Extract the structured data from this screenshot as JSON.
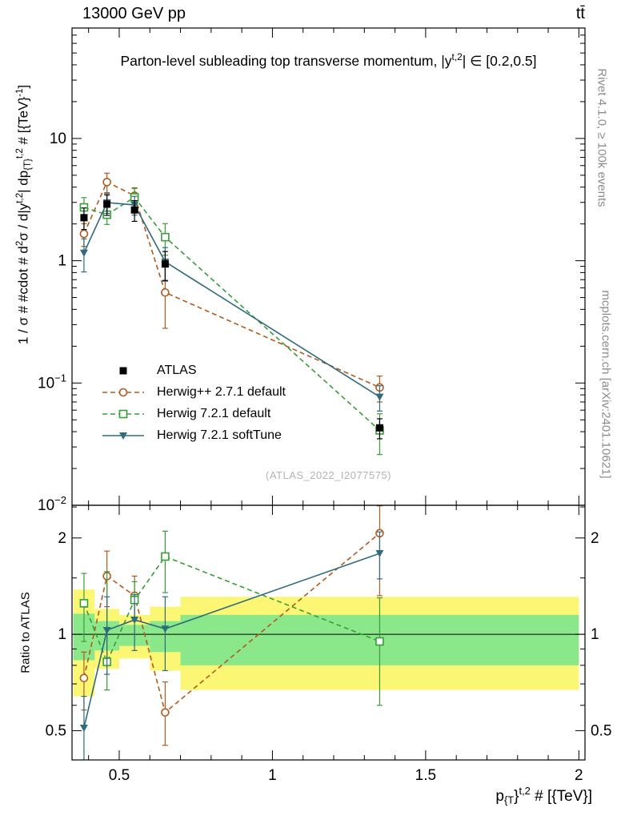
{
  "header": {
    "left": "13000 GeV pp",
    "right": "tt̄"
  },
  "side": {
    "rivet": "Rivet 4.1.0, ≥ 100k events",
    "mcplots": "mcplots.cern.ch [arXiv:2401.10621]"
  },
  "chart_data": {
    "type": "line",
    "title": "Parton-level subleading top transverse momentum, |y^{t,2}| ∈ [0.2,0.5]",
    "title_segments": [
      {
        "t": "Parton-level subleading top transverse momentum, |y"
      },
      {
        "t": "t,2",
        "s": "sup"
      },
      {
        "t": "| ∈ [0.2,0.5]"
      }
    ],
    "xlabel": "p_{T}^{t,2} # [{TeV}]",
    "xlabel_segments": [
      {
        "t": "p"
      },
      {
        "t": "{T",
        "s": "sub"
      },
      {
        "t": "}"
      },
      {
        "t": "t,2",
        "s": "sup"
      },
      {
        "t": " # [{TeV}]"
      }
    ],
    "x_range": [
      0.346,
      2.02
    ],
    "x_scale": "linear",
    "bin_edges": [
      0.35,
      0.42,
      0.5,
      0.6,
      0.7,
      2.0
    ],
    "x": [
      0.385,
      0.46,
      0.55,
      0.65,
      1.35
    ],
    "x_ticks": [
      {
        "v": 0.5,
        "label": "0.5"
      },
      {
        "v": 1,
        "label": "1"
      },
      {
        "v": 1.5,
        "label": "1.5"
      },
      {
        "v": 2,
        "label": "2"
      }
    ],
    "main": {
      "scale": "log",
      "y_range": [
        0.01,
        80
      ],
      "ylabel": "1 / σ # #cdot # d^2σ / d|y^{t,2}| dp_{T}^{t,2} # [{TeV}^-1]",
      "ylabel_segments": [
        {
          "t": "1 / σ # #cdot # d"
        },
        {
          "t": "2",
          "s": "sup"
        },
        {
          "t": "σ / d|y"
        },
        {
          "t": "t,2",
          "s": "sup"
        },
        {
          "t": "| dp"
        },
        {
          "t": "{T}",
          "s": "sub"
        },
        {
          "t": "t,2",
          "s": "sup"
        },
        {
          "t": " # [{TeV}"
        },
        {
          "t": "-1",
          "s": "sup"
        },
        {
          "t": "]"
        }
      ],
      "y_ticks": [
        {
          "v": 10,
          "label": "10"
        },
        {
          "v": 1,
          "label": "1"
        },
        {
          "v": 0.1,
          "label": "10",
          "exp": "−1"
        },
        {
          "v": 0.01,
          "label": "10",
          "exp": "−2"
        }
      ],
      "watermark": "(ATLAS_2022_I2077575)"
    },
    "ratio": {
      "scale": "log",
      "y_range": [
        0.405,
        2.53
      ],
      "ylabel": "Ratio to ATLAS",
      "y_ticks": [
        {
          "v": 2,
          "label": "2"
        },
        {
          "v": 1,
          "label": "1"
        },
        {
          "v": 0.5,
          "label": "0.5"
        }
      ],
      "reference": 1,
      "band_colors": {
        "yellow": "#fbf674",
        "green": "#8ae88a"
      },
      "bands": [
        {
          "x": [
            0.35,
            0.42
          ],
          "yellow": [
            0.64,
            1.38
          ],
          "green": [
            0.83,
            1.16
          ]
        },
        {
          "x": [
            0.42,
            0.5
          ],
          "yellow": [
            0.78,
            1.2
          ],
          "green": [
            0.89,
            1.1
          ]
        },
        {
          "x": [
            0.5,
            0.6
          ],
          "yellow": [
            0.84,
            1.15
          ],
          "green": [
            0.92,
            1.07
          ]
        },
        {
          "x": [
            0.6,
            0.7
          ],
          "yellow": [
            0.77,
            1.22
          ],
          "green": [
            0.88,
            1.1
          ]
        },
        {
          "x": [
            0.7,
            2.0
          ],
          "yellow": [
            0.67,
            1.31
          ],
          "green": [
            0.8,
            1.15
          ]
        }
      ]
    },
    "series": [
      {
        "label": "ATLAS",
        "color": "#000000",
        "marker": "square-filled",
        "line": "none",
        "values": [
          2.25,
          2.9,
          2.6,
          0.94,
          0.043
        ],
        "errors": [
          [
            0.45,
            0.45
          ],
          [
            0.55,
            0.55
          ],
          [
            0.5,
            0.5
          ],
          [
            0.25,
            0.25
          ],
          [
            0.008,
            0.008
          ]
        ],
        "ratio": null,
        "ratio_errors": null
      },
      {
        "label": "Herwig++ 2.7.1 default",
        "color": "#b05a1e",
        "marker": "circle-open",
        "line": "dashed",
        "values": [
          1.66,
          4.4,
          3.4,
          0.55,
          0.092
        ],
        "errors": [
          [
            0.35,
            0.35
          ],
          [
            0.8,
            0.8
          ],
          [
            0.55,
            0.55
          ],
          [
            0.27,
            0.37
          ],
          [
            0.022,
            0.022
          ]
        ],
        "ratio": [
          0.73,
          1.52,
          1.32,
          0.57,
          2.07
        ],
        "ratio_errors": [
          [
            0.15,
            0.15
          ],
          [
            0.3,
            0.3
          ],
          [
            0.2,
            0.2
          ],
          [
            0.12,
            0.14
          ],
          [
            0.75,
            0.45
          ]
        ]
      },
      {
        "label": "Herwig 7.2.1 default",
        "color": "#379e37",
        "marker": "square-open",
        "line": "dashed",
        "values": [
          2.73,
          2.38,
          3.3,
          1.56,
          0.041
        ],
        "errors": [
          [
            0.55,
            0.55
          ],
          [
            0.4,
            0.4
          ],
          [
            0.6,
            0.6
          ],
          [
            0.45,
            0.45
          ],
          [
            0.015,
            0.015
          ]
        ],
        "ratio": [
          1.25,
          0.82,
          1.28,
          1.75,
          0.95
        ],
        "ratio_errors": [
          [
            0.3,
            0.3
          ],
          [
            0.15,
            0.75
          ],
          [
            0.18,
            0.18
          ],
          [
            0.4,
            0.35
          ],
          [
            0.35,
            0.35
          ]
        ]
      },
      {
        "label": "Herwig 7.2.1 softTune",
        "color": "#2e6b7c",
        "marker": "triangle-down-filled",
        "line": "solid",
        "values": [
          1.16,
          2.99,
          2.86,
          0.98,
          0.077
        ],
        "errors": [
          [
            0.35,
            0.35
          ],
          [
            0.55,
            0.55
          ],
          [
            0.5,
            0.5
          ],
          [
            0.3,
            0.3
          ],
          [
            0.018,
            0.018
          ]
        ],
        "ratio": [
          0.51,
          1.03,
          1.11,
          1.04,
          1.79
        ],
        "ratio_errors": [
          [
            0.13,
            0.13
          ],
          [
            0.28,
            0.28
          ],
          [
            0.22,
            0.22
          ],
          [
            0.27,
            0.27
          ],
          [
            0.3,
            0.3
          ]
        ]
      }
    ]
  }
}
